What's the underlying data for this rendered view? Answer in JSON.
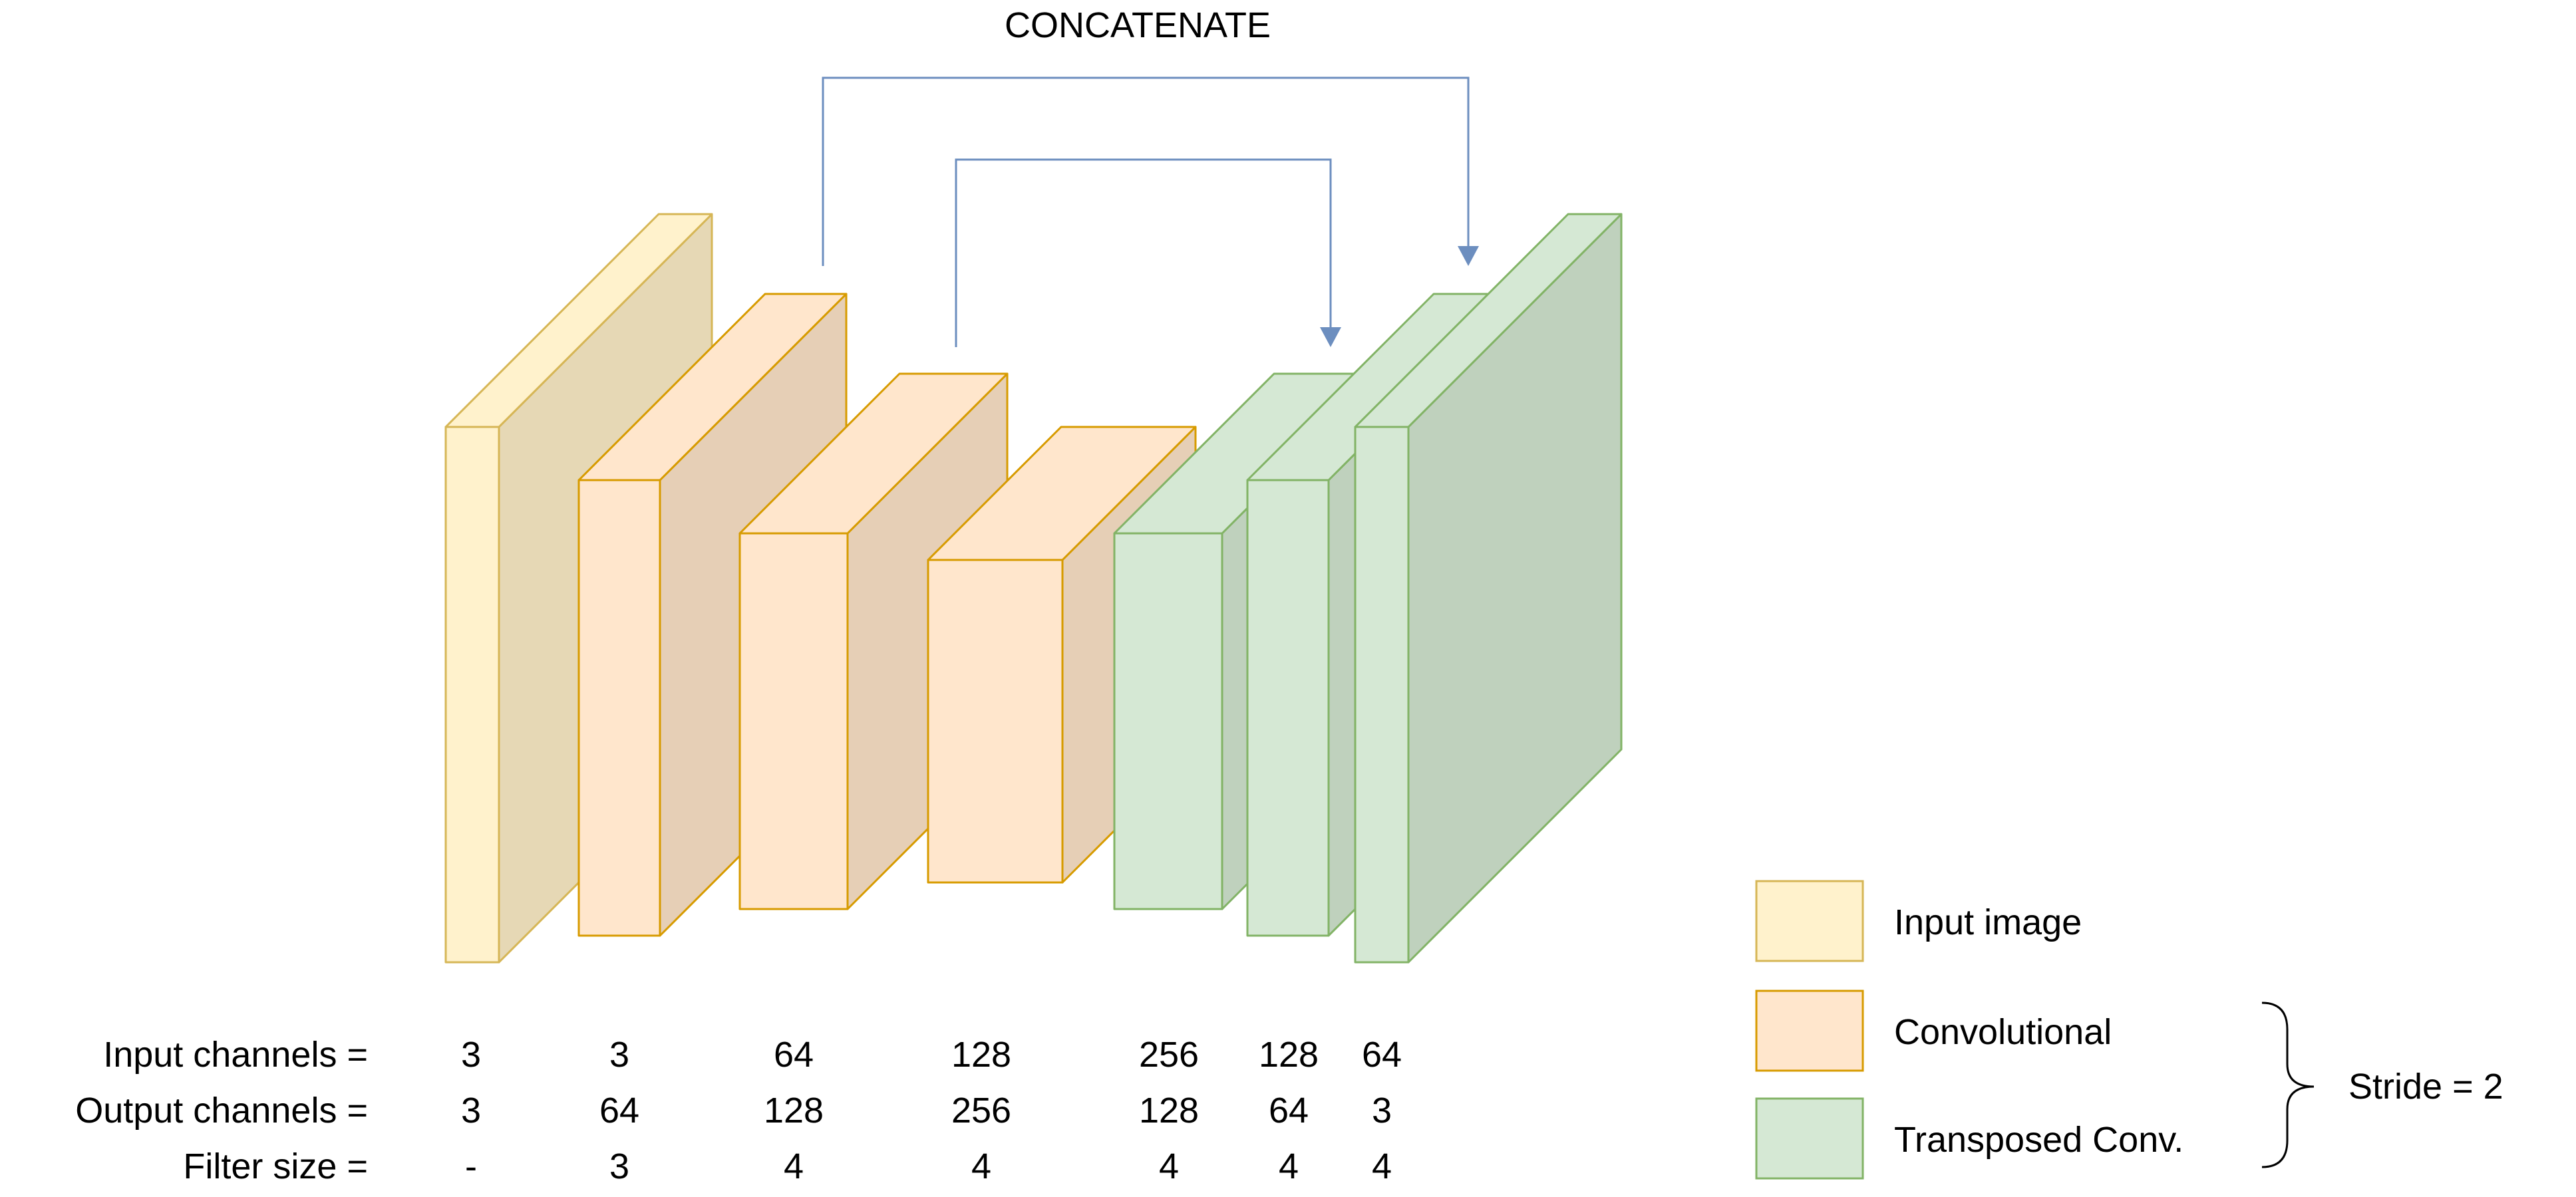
{
  "title": "CONCATENATE",
  "colors": {
    "input_fill": "#fff2cc",
    "input_side": "#e6d8b5",
    "input_stroke": "#d6b656",
    "conv_fill": "#ffe6cc",
    "conv_side": "#e6cfb6",
    "conv_stroke": "#d79b00",
    "tconv_fill": "#d5e8d4",
    "tconv_side": "#bfd1bd",
    "tconv_stroke": "#82b366",
    "arrow": "#6c8ebf"
  },
  "table": {
    "row_labels": [
      "Input channels =",
      "Output channels =",
      "Filter size ="
    ],
    "columns": [
      {
        "input": "3",
        "output": "3",
        "filter": "-"
      },
      {
        "input": "3",
        "output": "64",
        "filter": "3"
      },
      {
        "input": "64",
        "output": "128",
        "filter": "4"
      },
      {
        "input": "128",
        "output": "256",
        "filter": "4"
      },
      {
        "input": "256",
        "output": "128",
        "filter": "4"
      },
      {
        "input": "128",
        "output": "64",
        "filter": "4"
      },
      {
        "input": "64",
        "output": "3",
        "filter": "4"
      }
    ]
  },
  "legend": {
    "items": [
      {
        "label": "Input image",
        "kind": "input"
      },
      {
        "label": "Convolutional",
        "kind": "conv"
      },
      {
        "label": "Transposed Conv.",
        "kind": "tconv"
      }
    ],
    "brace_label": "Stride = 2"
  }
}
